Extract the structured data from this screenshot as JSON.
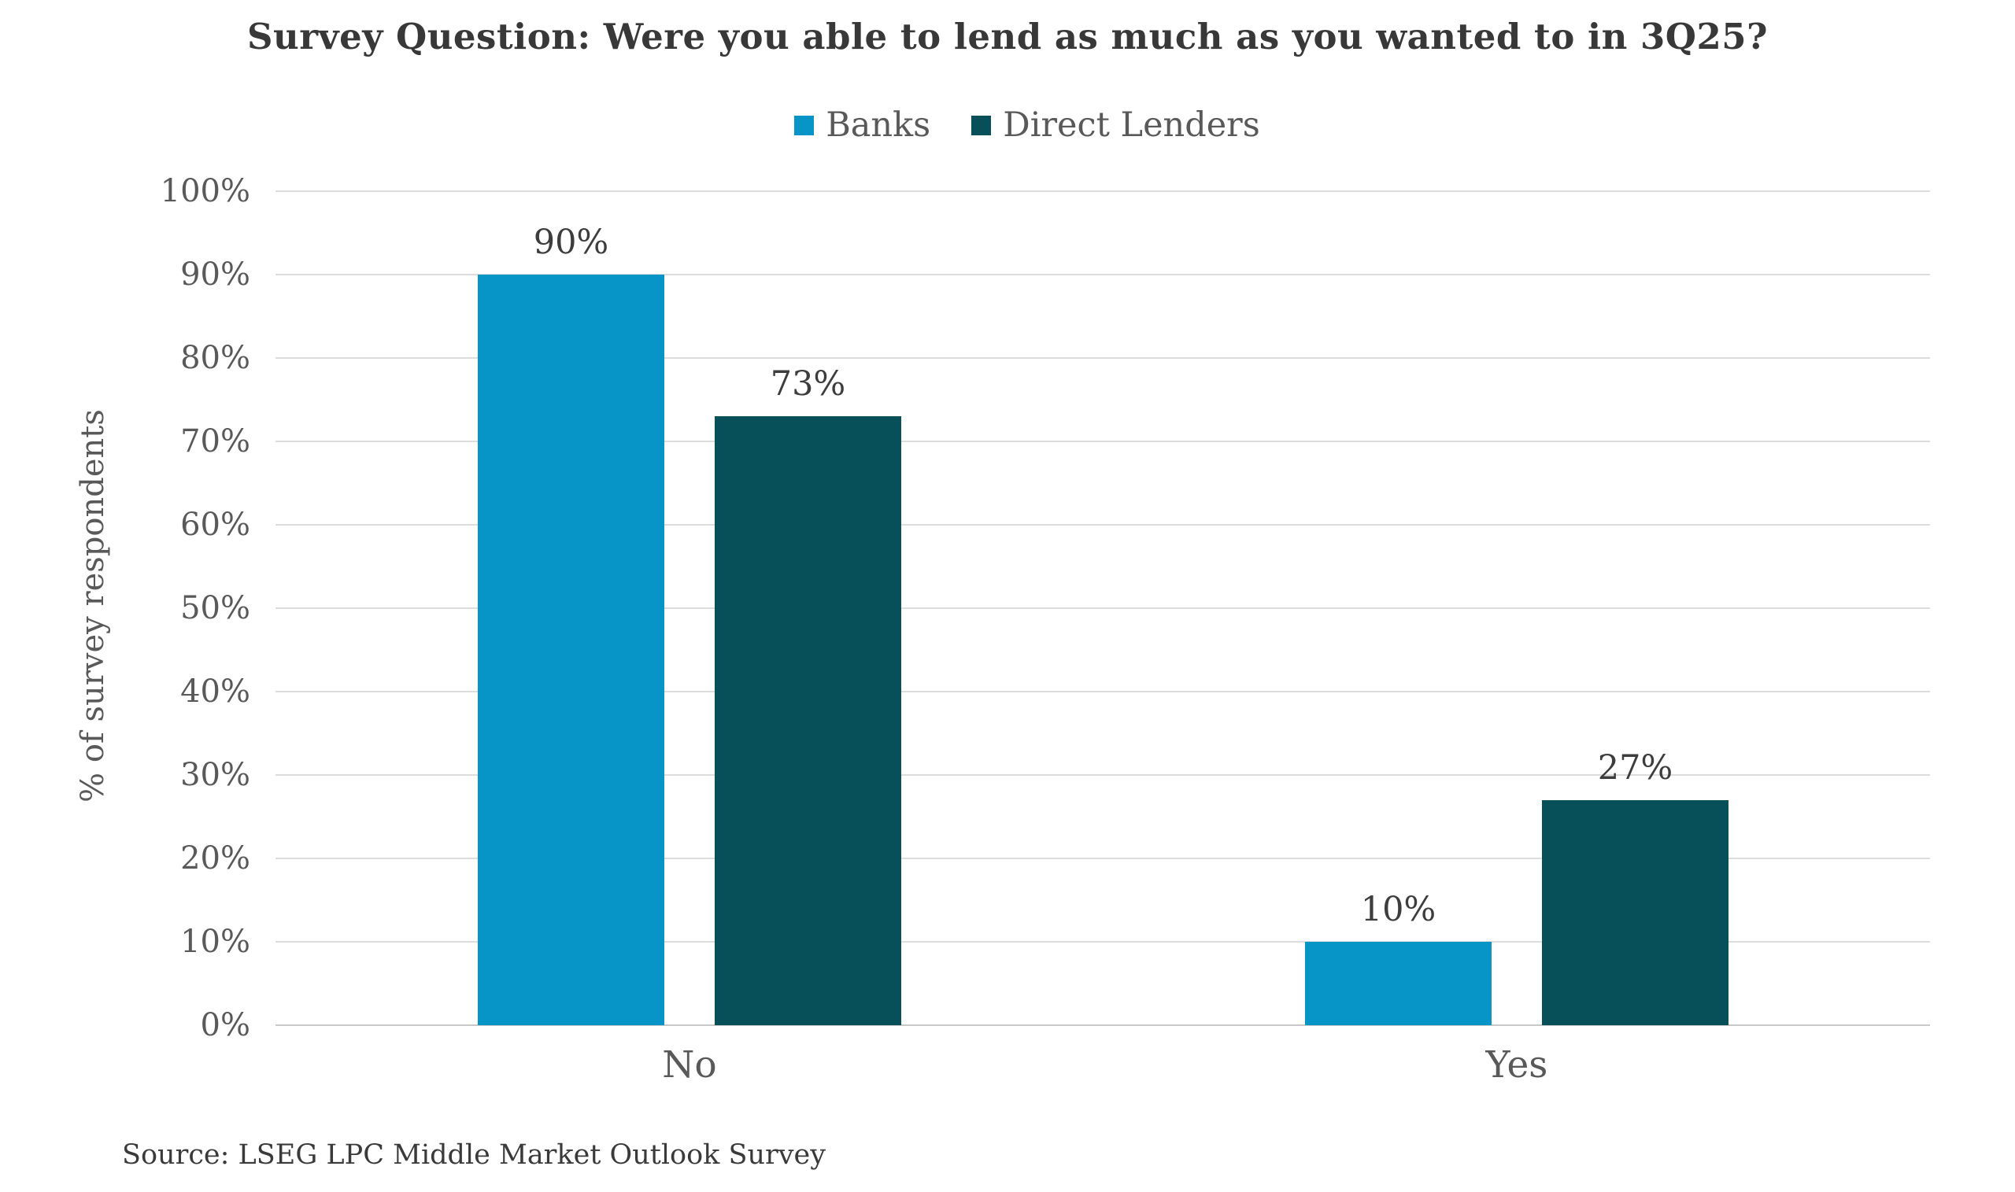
{
  "chart_data": {
    "type": "bar",
    "title": "Survey Question: Were you able to lend as much as you wanted to in 3Q25?",
    "categories": [
      "No",
      "Yes"
    ],
    "series": [
      {
        "name": "Banks",
        "values": [
          90,
          10
        ],
        "color": "#0794C7"
      },
      {
        "name": "Direct Lenders",
        "values": [
          73,
          27
        ],
        "color": "#07505A"
      }
    ],
    "data_labels": [
      {
        "series": "Banks",
        "labels": [
          "90%",
          "10%"
        ]
      },
      {
        "series": "Direct Lenders",
        "labels": [
          "73%",
          "27%"
        ]
      }
    ],
    "xlabel": "",
    "ylabel": "% of survey respondents",
    "ylim": [
      0,
      100
    ],
    "ytick_labels": [
      "0%",
      "10%",
      "20%",
      "30%",
      "40%",
      "50%",
      "60%",
      "70%",
      "80%",
      "90%",
      "100%"
    ],
    "grid": "horizontal",
    "legend_position": "top-center",
    "source": "Source: LSEG LPC Middle Market Outlook Survey"
  },
  "colors": {
    "background": "#FFFFFF",
    "banks_bar": "#0794C7",
    "direct_lenders_bar": "#07505A",
    "gridline": "#DCDCDC",
    "axis_line": "#C8C8C8",
    "title_text": "#383838",
    "data_label_text": "#3D3D3D",
    "axis_text": "#595959",
    "source_text": "#3A3A3A"
  }
}
